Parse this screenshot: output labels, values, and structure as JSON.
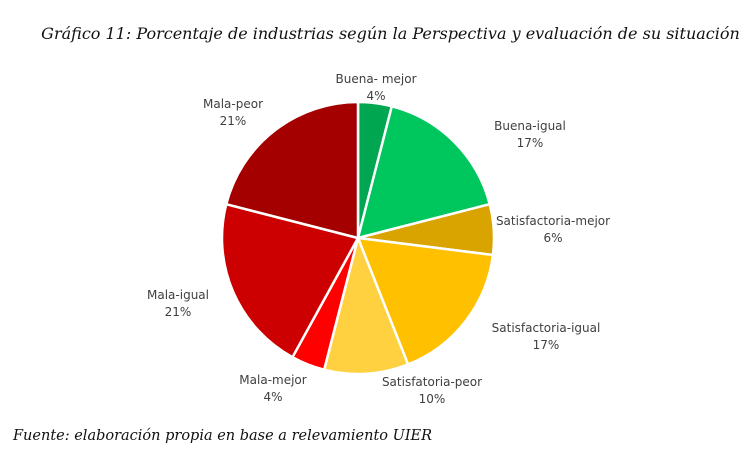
{
  "chart_data": {
    "type": "pie",
    "title": "Gráfico 11: Porcentaje de industrias según la Perspectiva y evaluación de su situación",
    "source": "Fuente: elaboración propia en base a relevamiento UIER",
    "slices": [
      {
        "label": "Buena- mejor",
        "value": 4,
        "value_label": "4%",
        "color": "#00a650"
      },
      {
        "label": "Buena-igual",
        "value": 17,
        "value_label": "17%",
        "color": "#00c65e"
      },
      {
        "label": "Satisfactoria-mejor",
        "value": 6,
        "value_label": "6%",
        "color": "#d9a300"
      },
      {
        "label": "Satisfactoria-igual",
        "value": 17,
        "value_label": "17%",
        "color": "#ffc000"
      },
      {
        "label": "Satisfatoria-peor",
        "value": 10,
        "value_label": "10%",
        "color": "#ffd040"
      },
      {
        "label": "Mala-mejor",
        "value": 4,
        "value_label": "4%",
        "color": "#ff0000"
      },
      {
        "label": "Mala-igual",
        "value": 21,
        "value_label": "21%",
        "color": "#cc0000"
      },
      {
        "label": "Mala-peor",
        "value": 21,
        "value_label": "21%",
        "color": "#a50000"
      }
    ]
  }
}
